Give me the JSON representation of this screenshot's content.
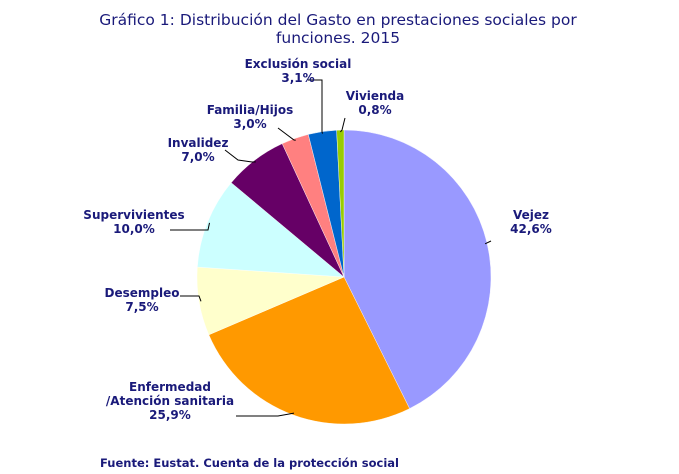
{
  "chart_data": {
    "type": "pie",
    "title_lines": [
      "Gráfico 1: Distribución del Gasto en prestaciones sociales por",
      "funciones. 2015"
    ],
    "source": "Fuente: Eustat. Cuenta de la protección social",
    "slices": [
      {
        "name_lines": [
          "Vejez"
        ],
        "value": 42.6,
        "value_label": "42,6%",
        "color": "#9999ff"
      },
      {
        "name_lines": [
          "Enfermedad",
          "/Atención sanitaria"
        ],
        "value": 25.9,
        "value_label": "25,9%",
        "color": "#ff9900"
      },
      {
        "name_lines": [
          "Desempleo"
        ],
        "value": 7.5,
        "value_label": "7,5%",
        "color": "#ffffcc"
      },
      {
        "name_lines": [
          "Supervivientes"
        ],
        "value": 10.0,
        "value_label": "10,0%",
        "color": "#ccffff"
      },
      {
        "name_lines": [
          "Invalidez"
        ],
        "value": 7.0,
        "value_label": "7,0%",
        "color": "#660066"
      },
      {
        "name_lines": [
          "Familia/Hijos"
        ],
        "value": 3.0,
        "value_label": "3,0%",
        "color": "#ff8080"
      },
      {
        "name_lines": [
          "Exclusión social"
        ],
        "value": 3.1,
        "value_label": "3,1%",
        "color": "#0066cc"
      },
      {
        "name_lines": [
          "Vivienda"
        ],
        "value": 0.8,
        "value_label": "0,8%",
        "color": "#99cc00"
      }
    ]
  }
}
